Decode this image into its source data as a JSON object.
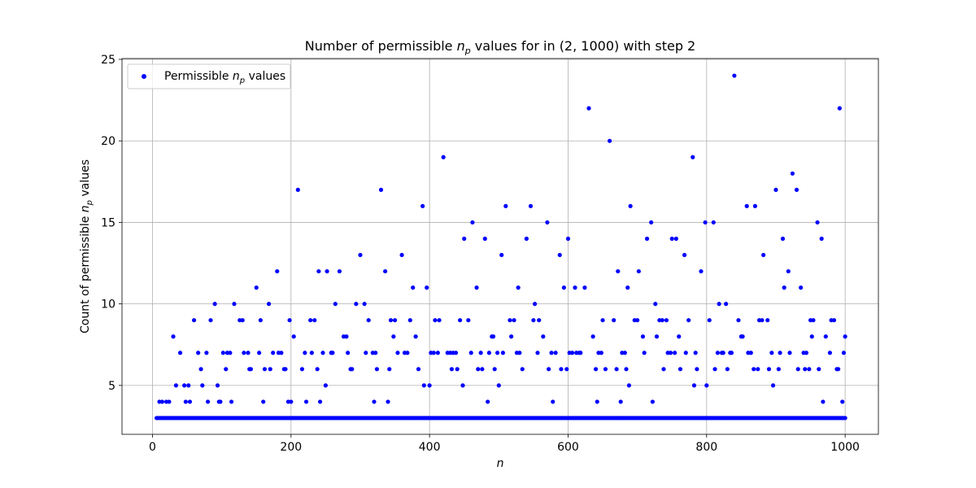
{
  "chart_data": {
    "type": "scatter",
    "title_pre": "Number of permissible ",
    "title_sym": "n",
    "title_sub": "p",
    "title_post": " values for in (2, 1000) with step 2",
    "xlabel": "n",
    "ylabel_pre": "Count of permissible ",
    "ylabel_sym": "n",
    "ylabel_sub": "p",
    "ylabel_post": " values",
    "legend_pre": "Permissible ",
    "legend_sym": "n",
    "legend_sub": "p",
    "legend_post": " values",
    "legend_position": "upper-left",
    "marker_color": "#0000ff",
    "grid": true,
    "xlim": [
      -44,
      1048
    ],
    "ylim": [
      2.0,
      25.05
    ],
    "xticks": [
      0,
      200,
      400,
      600,
      800,
      1000
    ],
    "yticks": [
      5,
      10,
      15,
      20,
      25
    ],
    "x_tick_labels": [
      "0",
      "200",
      "400",
      "600",
      "800",
      "1000"
    ],
    "y_tick_labels": [
      "5",
      "10",
      "15",
      "20",
      "25"
    ],
    "baseline_value": 3,
    "baseline_x_range": [
      6,
      1000
    ],
    "points": [
      [
        10,
        4
      ],
      [
        14,
        4
      ],
      [
        20,
        4
      ],
      [
        24,
        4
      ],
      [
        30,
        8
      ],
      [
        34,
        5
      ],
      [
        40,
        7
      ],
      [
        46,
        5
      ],
      [
        48,
        4
      ],
      [
        52,
        5
      ],
      [
        54,
        4
      ],
      [
        60,
        9
      ],
      [
        66,
        7
      ],
      [
        70,
        6
      ],
      [
        72,
        5
      ],
      [
        78,
        7
      ],
      [
        80,
        4
      ],
      [
        84,
        9
      ],
      [
        90,
        10
      ],
      [
        94,
        5
      ],
      [
        96,
        4
      ],
      [
        98,
        4
      ],
      [
        102,
        7
      ],
      [
        106,
        6
      ],
      [
        108,
        7
      ],
      [
        112,
        7
      ],
      [
        114,
        4
      ],
      [
        118,
        10
      ],
      [
        126,
        9
      ],
      [
        130,
        9
      ],
      [
        132,
        7
      ],
      [
        138,
        7
      ],
      [
        140,
        6
      ],
      [
        142,
        6
      ],
      [
        150,
        11
      ],
      [
        154,
        7
      ],
      [
        156,
        9
      ],
      [
        160,
        4
      ],
      [
        162,
        6
      ],
      [
        168,
        10
      ],
      [
        170,
        6
      ],
      [
        174,
        7
      ],
      [
        180,
        12
      ],
      [
        182,
        7
      ],
      [
        186,
        7
      ],
      [
        190,
        6
      ],
      [
        192,
        6
      ],
      [
        196,
        4
      ],
      [
        198,
        9
      ],
      [
        200,
        4
      ],
      [
        204,
        8
      ],
      [
        210,
        17
      ],
      [
        216,
        6
      ],
      [
        220,
        7
      ],
      [
        222,
        4
      ],
      [
        228,
        9
      ],
      [
        230,
        7
      ],
      [
        234,
        9
      ],
      [
        238,
        6
      ],
      [
        240,
        12
      ],
      [
        242,
        4
      ],
      [
        246,
        7
      ],
      [
        250,
        5
      ],
      [
        252,
        12
      ],
      [
        258,
        7
      ],
      [
        260,
        7
      ],
      [
        264,
        10
      ],
      [
        270,
        12
      ],
      [
        276,
        8
      ],
      [
        280,
        8
      ],
      [
        282,
        7
      ],
      [
        286,
        6
      ],
      [
        288,
        6
      ],
      [
        294,
        10
      ],
      [
        300,
        13
      ],
      [
        306,
        10
      ],
      [
        308,
        7
      ],
      [
        312,
        9
      ],
      [
        318,
        7
      ],
      [
        320,
        4
      ],
      [
        322,
        7
      ],
      [
        324,
        6
      ],
      [
        330,
        17
      ],
      [
        336,
        12
      ],
      [
        340,
        4
      ],
      [
        342,
        6
      ],
      [
        344,
        9
      ],
      [
        348,
        8
      ],
      [
        350,
        9
      ],
      [
        354,
        7
      ],
      [
        360,
        13
      ],
      [
        364,
        7
      ],
      [
        368,
        7
      ],
      [
        372,
        9
      ],
      [
        376,
        11
      ],
      [
        380,
        8
      ],
      [
        384,
        6
      ],
      [
        390,
        16
      ],
      [
        392,
        5
      ],
      [
        396,
        11
      ],
      [
        400,
        5
      ],
      [
        402,
        7
      ],
      [
        406,
        7
      ],
      [
        408,
        9
      ],
      [
        412,
        7
      ],
      [
        414,
        9
      ],
      [
        420,
        19
      ],
      [
        426,
        7
      ],
      [
        430,
        7
      ],
      [
        432,
        6
      ],
      [
        434,
        7
      ],
      [
        438,
        7
      ],
      [
        440,
        6
      ],
      [
        444,
        9
      ],
      [
        448,
        5
      ],
      [
        450,
        14
      ],
      [
        456,
        9
      ],
      [
        460,
        7
      ],
      [
        462,
        15
      ],
      [
        468,
        11
      ],
      [
        470,
        6
      ],
      [
        474,
        7
      ],
      [
        476,
        6
      ],
      [
        480,
        14
      ],
      [
        484,
        4
      ],
      [
        486,
        7
      ],
      [
        490,
        8
      ],
      [
        492,
        8
      ],
      [
        494,
        6
      ],
      [
        498,
        7
      ],
      [
        500,
        5
      ],
      [
        504,
        13
      ],
      [
        506,
        7
      ],
      [
        510,
        16
      ],
      [
        516,
        9
      ],
      [
        518,
        8
      ],
      [
        522,
        9
      ],
      [
        526,
        7
      ],
      [
        528,
        11
      ],
      [
        530,
        7
      ],
      [
        534,
        6
      ],
      [
        540,
        14
      ],
      [
        546,
        16
      ],
      [
        550,
        9
      ],
      [
        552,
        10
      ],
      [
        556,
        7
      ],
      [
        558,
        9
      ],
      [
        564,
        8
      ],
      [
        570,
        15
      ],
      [
        572,
        6
      ],
      [
        576,
        7
      ],
      [
        578,
        4
      ],
      [
        582,
        7
      ],
      [
        588,
        13
      ],
      [
        590,
        6
      ],
      [
        594,
        11
      ],
      [
        598,
        6
      ],
      [
        600,
        14
      ],
      [
        602,
        7
      ],
      [
        606,
        7
      ],
      [
        610,
        11
      ],
      [
        612,
        7
      ],
      [
        616,
        7
      ],
      [
        618,
        7
      ],
      [
        624,
        11
      ],
      [
        630,
        22
      ],
      [
        636,
        8
      ],
      [
        640,
        6
      ],
      [
        642,
        4
      ],
      [
        644,
        7
      ],
      [
        648,
        7
      ],
      [
        650,
        9
      ],
      [
        654,
        6
      ],
      [
        660,
        20
      ],
      [
        666,
        9
      ],
      [
        670,
        6
      ],
      [
        672,
        12
      ],
      [
        676,
        4
      ],
      [
        678,
        7
      ],
      [
        682,
        7
      ],
      [
        684,
        6
      ],
      [
        686,
        11
      ],
      [
        688,
        5
      ],
      [
        690,
        16
      ],
      [
        696,
        9
      ],
      [
        700,
        9
      ],
      [
        702,
        12
      ],
      [
        708,
        8
      ],
      [
        710,
        7
      ],
      [
        714,
        14
      ],
      [
        720,
        15
      ],
      [
        722,
        4
      ],
      [
        726,
        10
      ],
      [
        728,
        8
      ],
      [
        732,
        9
      ],
      [
        736,
        9
      ],
      [
        738,
        6
      ],
      [
        742,
        9
      ],
      [
        744,
        7
      ],
      [
        748,
        7
      ],
      [
        750,
        14
      ],
      [
        754,
        7
      ],
      [
        756,
        14
      ],
      [
        760,
        8
      ],
      [
        762,
        6
      ],
      [
        768,
        13
      ],
      [
        770,
        7
      ],
      [
        774,
        9
      ],
      [
        780,
        19
      ],
      [
        782,
        5
      ],
      [
        784,
        7
      ],
      [
        786,
        6
      ],
      [
        792,
        12
      ],
      [
        798,
        15
      ],
      [
        800,
        5
      ],
      [
        804,
        9
      ],
      [
        810,
        15
      ],
      [
        812,
        6
      ],
      [
        816,
        7
      ],
      [
        818,
        10
      ],
      [
        822,
        7
      ],
      [
        824,
        7
      ],
      [
        828,
        10
      ],
      [
        830,
        6
      ],
      [
        834,
        7
      ],
      [
        836,
        7
      ],
      [
        840,
        24
      ],
      [
        846,
        9
      ],
      [
        850,
        8
      ],
      [
        852,
        8
      ],
      [
        858,
        16
      ],
      [
        860,
        7
      ],
      [
        864,
        7
      ],
      [
        868,
        6
      ],
      [
        870,
        16
      ],
      [
        874,
        6
      ],
      [
        876,
        9
      ],
      [
        880,
        9
      ],
      [
        882,
        13
      ],
      [
        888,
        9
      ],
      [
        890,
        6
      ],
      [
        894,
        7
      ],
      [
        896,
        5
      ],
      [
        900,
        17
      ],
      [
        904,
        6
      ],
      [
        906,
        7
      ],
      [
        910,
        14
      ],
      [
        912,
        11
      ],
      [
        918,
        12
      ],
      [
        920,
        7
      ],
      [
        924,
        18
      ],
      [
        930,
        17
      ],
      [
        932,
        6
      ],
      [
        936,
        11
      ],
      [
        940,
        7
      ],
      [
        942,
        6
      ],
      [
        944,
        7
      ],
      [
        948,
        6
      ],
      [
        950,
        9
      ],
      [
        952,
        8
      ],
      [
        954,
        9
      ],
      [
        960,
        15
      ],
      [
        962,
        6
      ],
      [
        966,
        14
      ],
      [
        968,
        4
      ],
      [
        972,
        8
      ],
      [
        978,
        7
      ],
      [
        980,
        9
      ],
      [
        984,
        9
      ],
      [
        988,
        6
      ],
      [
        990,
        6
      ],
      [
        992,
        22
      ],
      [
        996,
        4
      ],
      [
        998,
        7
      ],
      [
        1000,
        8
      ]
    ]
  }
}
